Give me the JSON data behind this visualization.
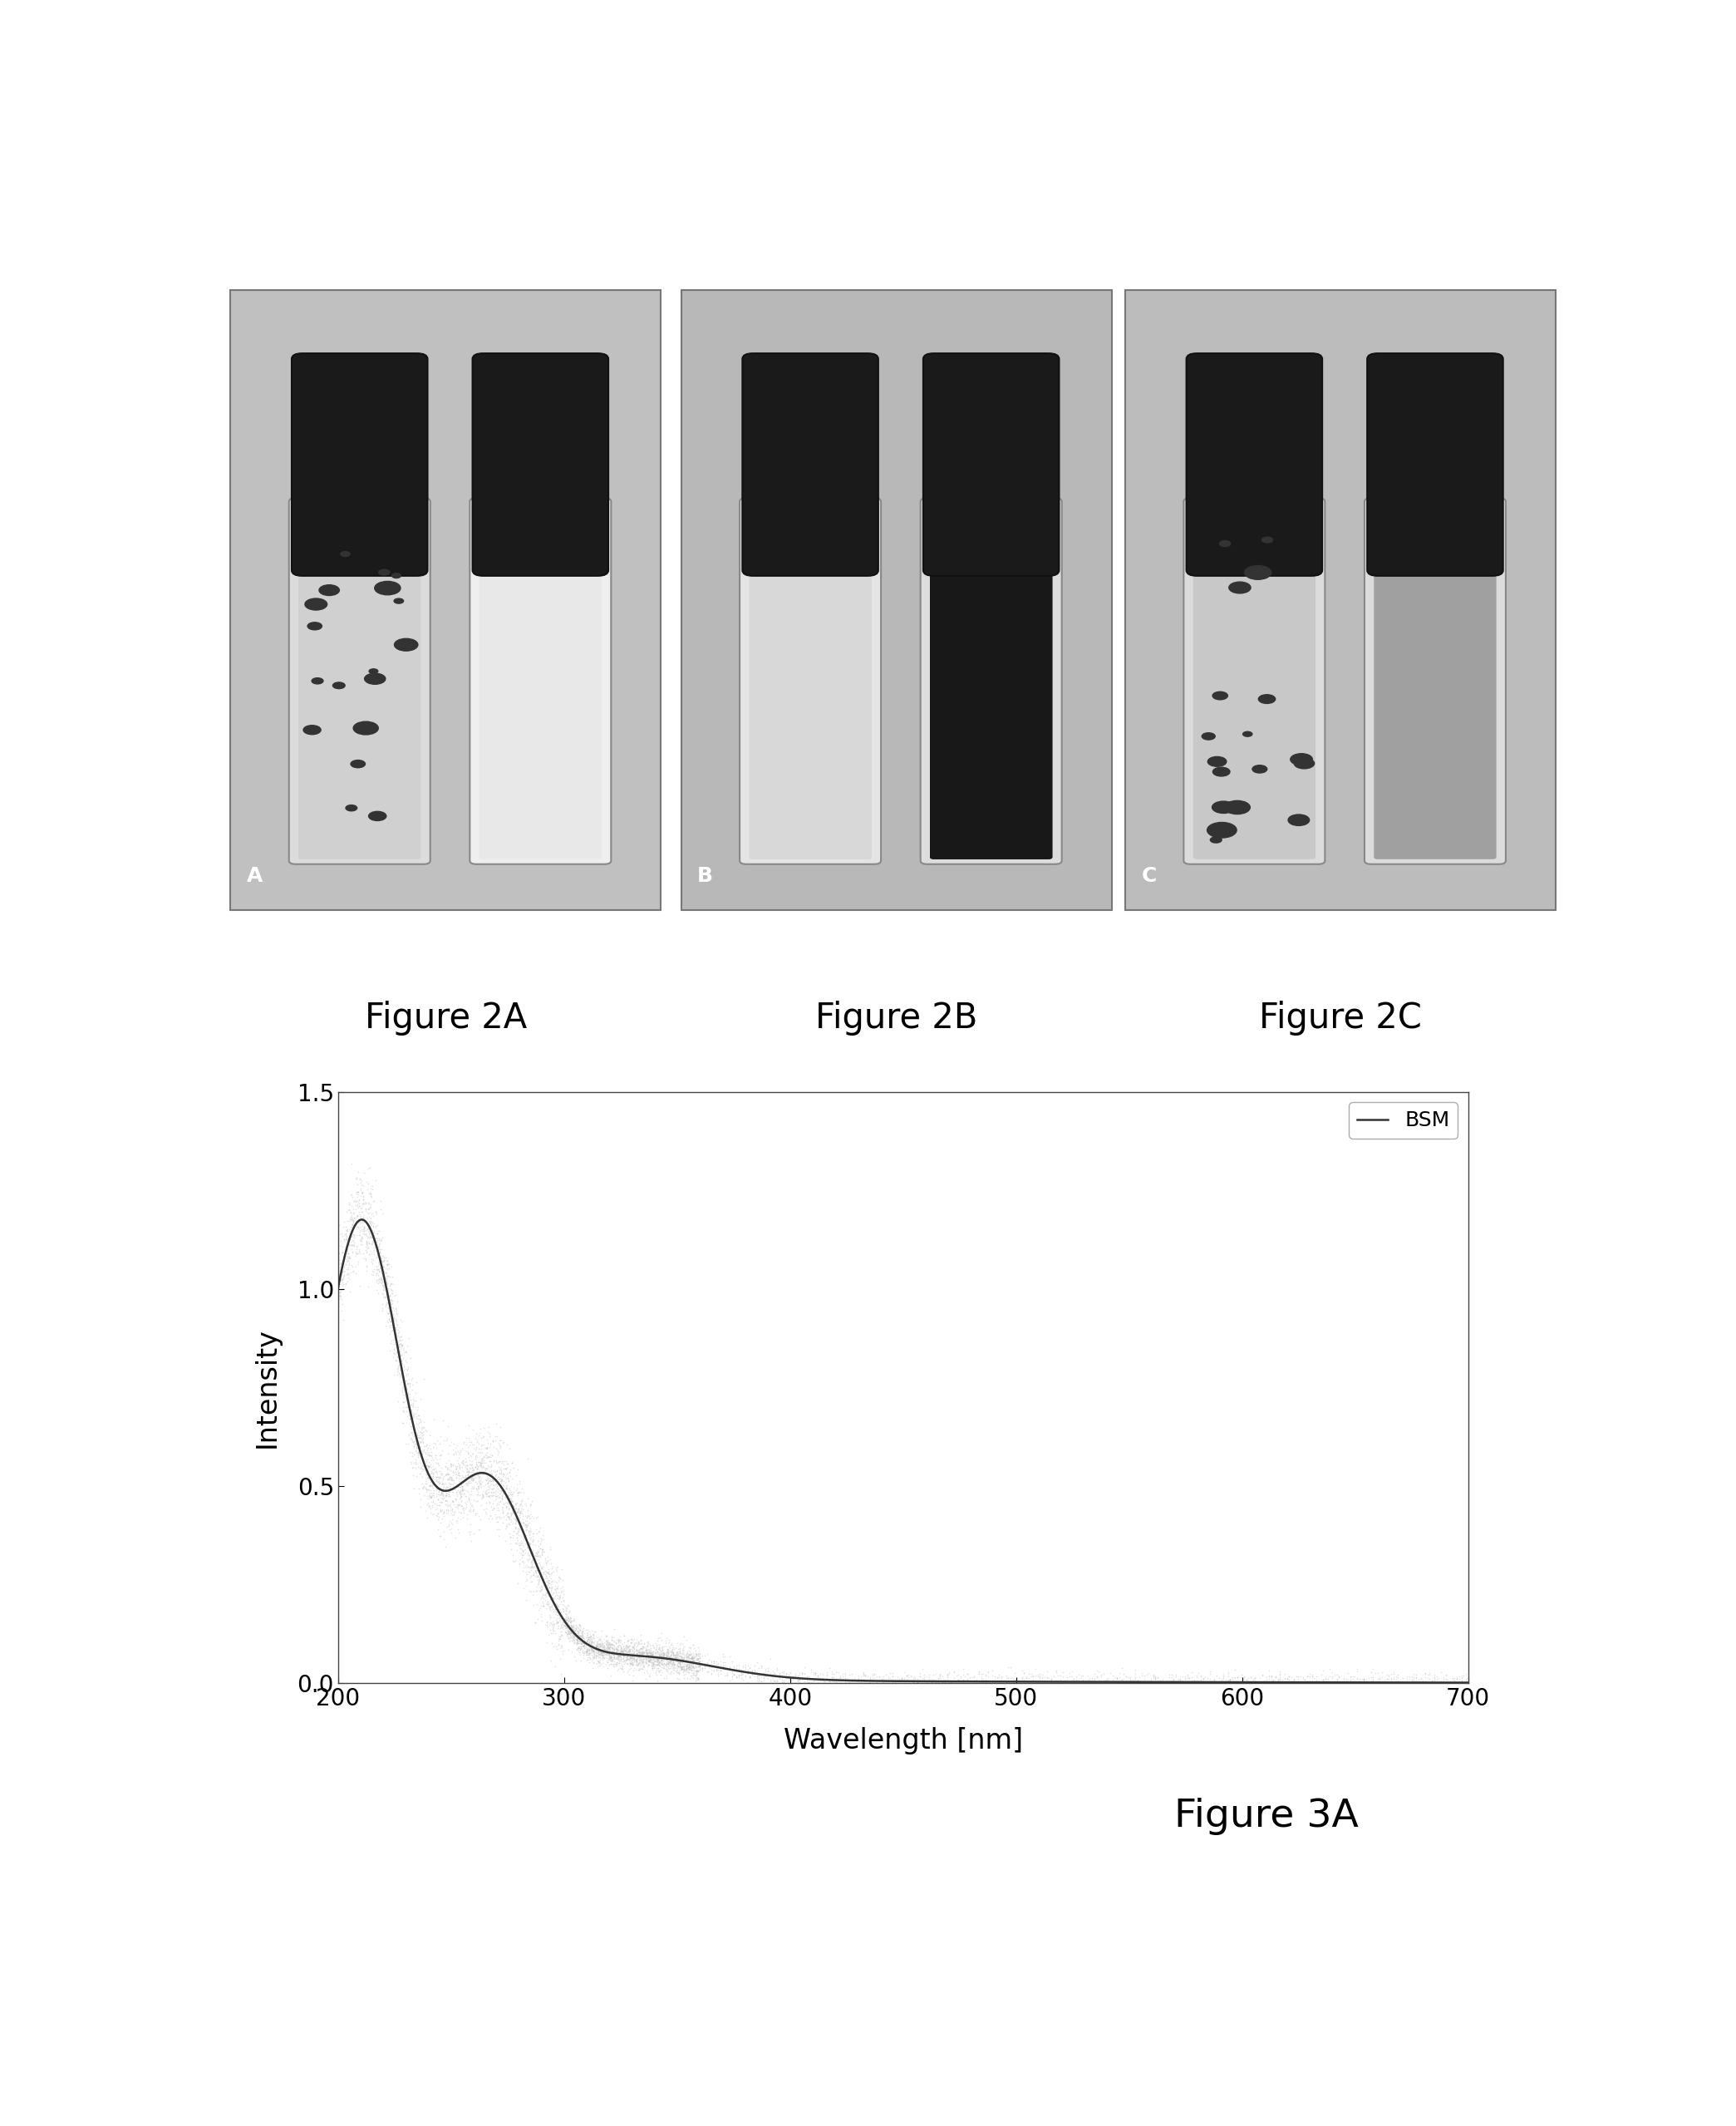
{
  "figure_labels": [
    "Figure 2A",
    "Figure 2B",
    "Figure 2C"
  ],
  "figure3_label": "Figure 3A",
  "xlabel": "Wavelength [nm]",
  "ylabel": "Intensity",
  "legend_label": "BSM",
  "xlim": [
    200,
    700
  ],
  "ylim": [
    0,
    1.5
  ],
  "yticks": [
    0,
    0.5,
    1,
    1.5
  ],
  "xticks": [
    200,
    300,
    400,
    500,
    600,
    700
  ],
  "line_color": "#333333",
  "scatter_color": "#bbbbbb",
  "background_color": "#ffffff",
  "label_fontsize": 30,
  "axis_fontsize": 24,
  "tick_fontsize": 20,
  "legend_fontsize": 18,
  "fig3_label_fontsize": 34,
  "photo_bg": "#c8c8c8",
  "panel_bg_A": "#bcbcbc",
  "panel_bg_B": "#b8b8b8",
  "panel_bg_C": "#bcbcbc"
}
